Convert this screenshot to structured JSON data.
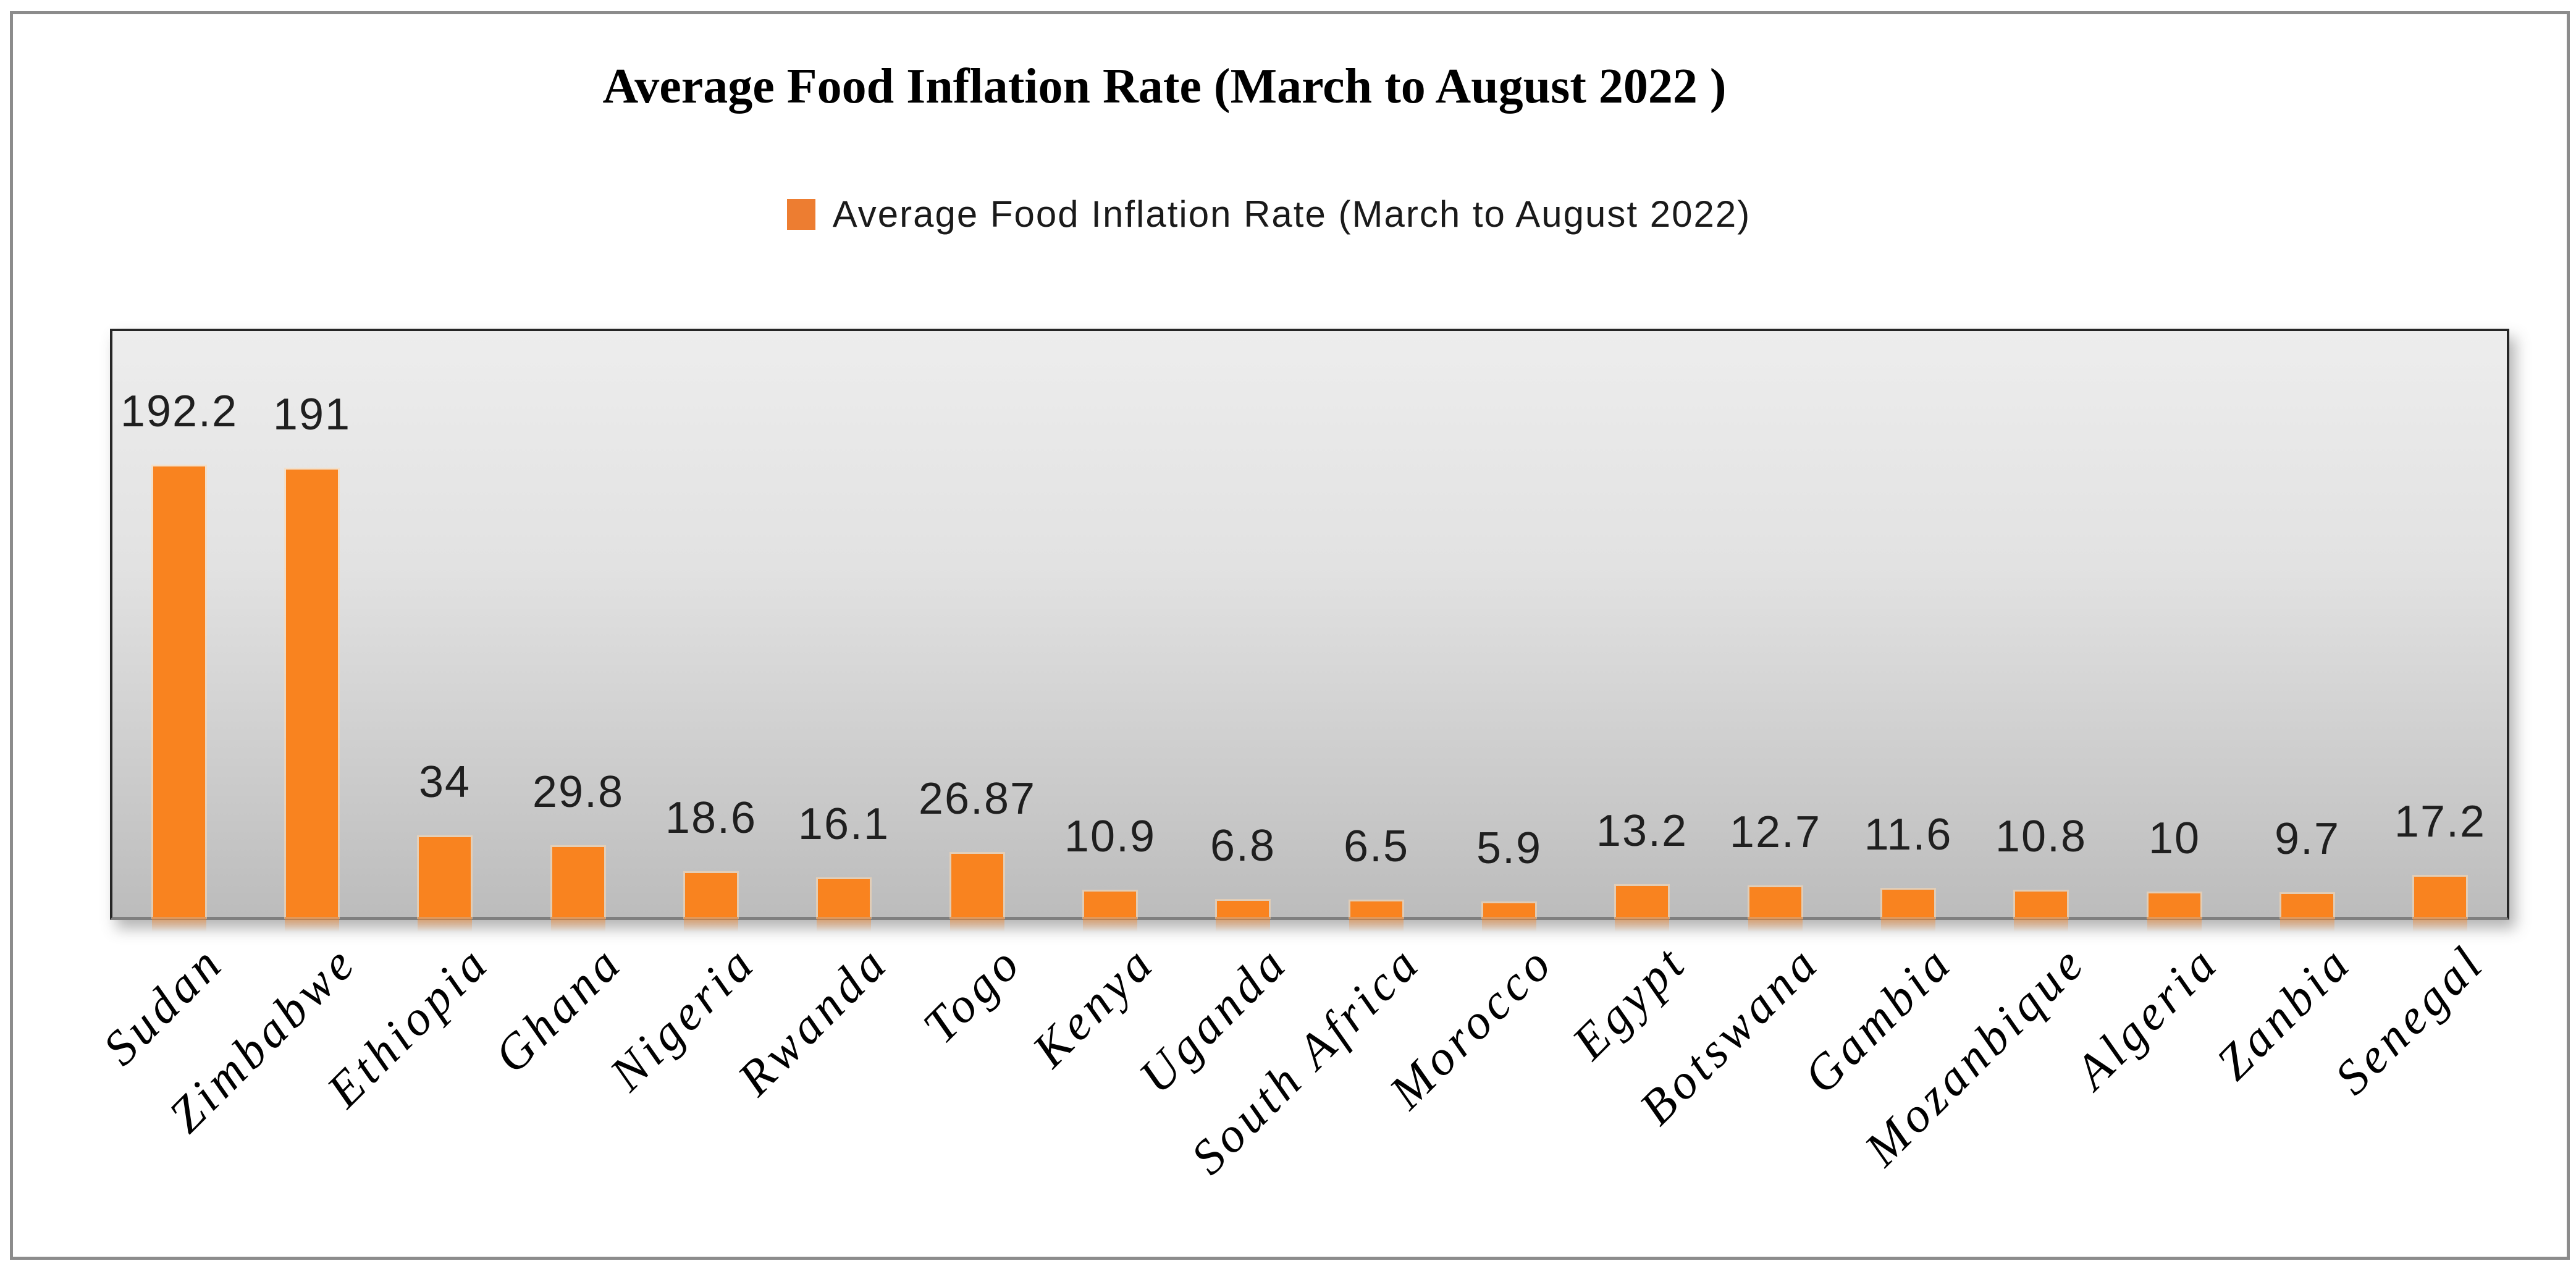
{
  "title": {
    "text": "Average Food Inflation Rate (March to August 2022 )"
  },
  "legend": {
    "marker": "orange-square",
    "marker_color": "#ED7D31",
    "label": "Average Food Inflation Rate (March to August 2022)"
  },
  "colors": {
    "bar_fill": "#F9831F",
    "plot_border": "#262626",
    "axis_line": "#7f7f7f",
    "figure_frame": "#8c8c8c",
    "plot_bg_top": "#ededed",
    "plot_bg_bottom": "#bcbcbc"
  },
  "chart_data": {
    "type": "bar",
    "title": "Average Food Inflation Rate (March to August 2022 )",
    "series_name": "Average Food Inflation Rate (March to August 2022)",
    "categories": [
      "Sudan",
      "Zimbabwe",
      "Ethiopia",
      "Ghana",
      "Nigeria",
      "Rwanda",
      "Togo",
      "Kenya",
      "Uganda",
      "South Africa",
      "Morocco",
      "Egypt",
      "Botswana",
      "Gambia",
      "Mozanbique",
      "Algeria",
      "Zanbia",
      "Senegal"
    ],
    "values": [
      192.2,
      191,
      34,
      29.8,
      18.6,
      16.1,
      26.87,
      10.9,
      6.8,
      6.5,
      5.9,
      13.2,
      12.7,
      11.6,
      10.8,
      10,
      9.7,
      17.2
    ],
    "data_labels": [
      "192.2",
      "191",
      "34",
      "29.8",
      "18.6",
      "16.1",
      "26.87",
      "10.9",
      "6.8",
      "6.5",
      "5.9",
      "13.2",
      "12.7",
      "11.6",
      "10.8",
      "10",
      "9.7",
      "17.2"
    ],
    "xlabel": "",
    "ylabel": "",
    "ylim": [
      0,
      250
    ],
    "grid": false,
    "y_axis_visible": false,
    "legend_position": "top-center",
    "data_label_position": "outside-end",
    "category_label_rotation_deg": -45
  }
}
